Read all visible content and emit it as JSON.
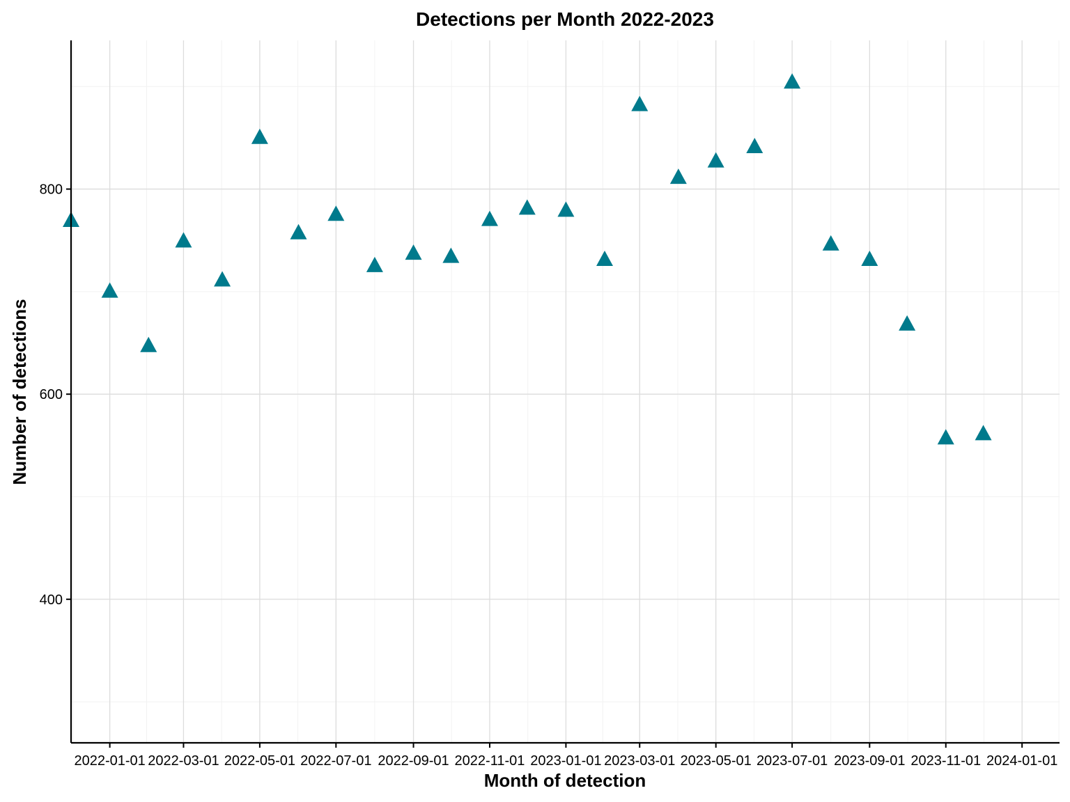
{
  "chart_data": {
    "type": "scatter",
    "title": "Detections per Month 2022-2023",
    "xlabel": "Month of detection",
    "ylabel": "Number of detections",
    "x_type": "date",
    "xlim": [
      "2021-12-01",
      "2024-01-31"
    ],
    "ylim": [
      260,
      945
    ],
    "x_ticks": [
      "2022-01-01",
      "2022-03-01",
      "2022-05-01",
      "2022-07-01",
      "2022-09-01",
      "2022-11-01",
      "2023-01-01",
      "2023-03-01",
      "2023-05-01",
      "2023-07-01",
      "2023-09-01",
      "2023-11-01",
      "2024-01-01"
    ],
    "y_ticks": [
      400,
      600,
      800
    ],
    "grid": true,
    "marker": "triangle",
    "point_color": "#007a8c",
    "series": [
      {
        "x": [
          "2021-12-01",
          "2022-01-01",
          "2022-02-01",
          "2022-03-01",
          "2022-04-01",
          "2022-05-01",
          "2022-06-01",
          "2022-07-01",
          "2022-08-01",
          "2022-09-01",
          "2022-10-01",
          "2022-11-01",
          "2022-12-01",
          "2023-01-01",
          "2023-02-01",
          "2023-03-01",
          "2023-04-01",
          "2023-05-01",
          "2023-06-01",
          "2023-07-01",
          "2023-08-01",
          "2023-09-01",
          "2023-10-01",
          "2023-11-01",
          "2023-12-01"
        ],
        "y": [
          769,
          700,
          647,
          749,
          711,
          850,
          757,
          775,
          725,
          737,
          734,
          770,
          781,
          779,
          731,
          882,
          811,
          827,
          841,
          904,
          746,
          731,
          668,
          557,
          561
        ]
      }
    ]
  }
}
